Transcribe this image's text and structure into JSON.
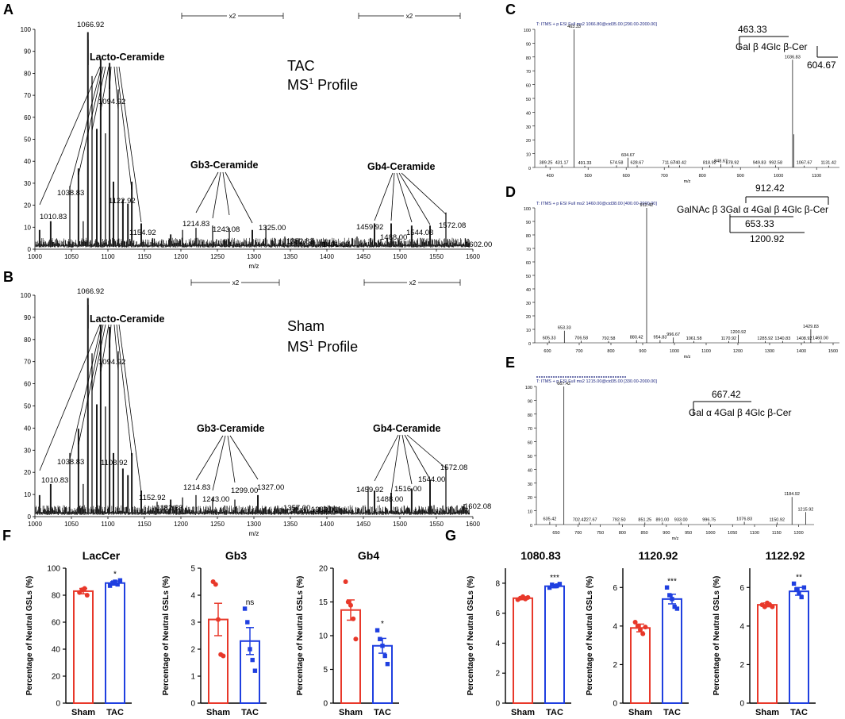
{
  "panels": {
    "A": {
      "letter": "A",
      "title1": "TAC",
      "title2_main": "MS",
      "title2_sup": "1",
      "title2_tail": " Profile",
      "x2_left": "x2",
      "x2_right": "x2",
      "xlabel": "m/z",
      "groups": {
        "lacto": "Lacto-Ceramide",
        "gb3": "Gb3-Ceramide",
        "gb4": "Gb4-Ceramide"
      },
      "peaks": {
        "p1066": "1066.92",
        "p1094": "1094.92",
        "p1038": "1038.83",
        "p1010": "1010.83",
        "p1122": "1122.92",
        "p1154": "1154.92",
        "p1214": "1214.83",
        "p1243": "1243.08",
        "p1325": "1325.00",
        "p1352": "1352.83",
        "p1401": "1401.83",
        "p1459": "1459.92",
        "p1488": "1488.00",
        "p1544": "1544.08",
        "p1572": "1572.08",
        "p1602": "1602.00"
      }
    },
    "B": {
      "letter": "B",
      "title1": "Sham",
      "title2_main": "MS",
      "title2_sup": "1",
      "title2_tail": " Profile",
      "x2_left": "x2",
      "x2_right": "x2",
      "xlabel": "m/z",
      "groups": {
        "lacto": "Lacto-Ceramide",
        "gb3": "Gb3-Ceramide",
        "gb4": "Gb4-Ceramide"
      },
      "peaks": {
        "p1066": "1066.92",
        "p1094": "1094.92",
        "p1038": "1038.83",
        "p1010": "1010.83",
        "p1108": "1108.92",
        "p1152": "1152.92",
        "p1182": "1182.83",
        "p1214": "1214.83",
        "p1243": "1243.00",
        "p1299": "1299.00",
        "p1327": "1327.00",
        "p1357": "1357.00",
        "p1389": "1389.08",
        "p1459": "1459.92",
        "p1488": "1488.00",
        "p1516": "1516.00",
        "p1544": "1544.00",
        "p1572": "1572.08",
        "p1602": "1602.08"
      }
    },
    "C": {
      "letter": "C",
      "header": "T: ITMS + p ESI Full ms2 1066.80@cid35.00 [290.00-2000.00]",
      "xlabel": "m/z",
      "frag_top": "463.33",
      "frag_bottom": "604.67",
      "struct": "Gal β 4Glc β-Cer",
      "peaks": [
        "389.25",
        "431.17",
        "463.33",
        "491.33",
        "574.58",
        "604.67",
        "628.67",
        "711.67",
        "740.42",
        "818.92",
        "848.67",
        "878.92",
        "949.83",
        "992.58",
        "1036.83",
        "1067.67",
        "1131.42"
      ]
    },
    "D": {
      "letter": "D",
      "header": "T: ITMS + p ESI Full ms2 1460.00@cid38.00 [400.00-2000.00]",
      "xlabel": "m/z",
      "frag_top": "912.42",
      "frag_mid": "653.33",
      "frag_bottom": "1200.92",
      "struct": "GalNAc β 3Gal α 4Gal β 4Glc β-Cer",
      "peaks": [
        "605.33",
        "653.33",
        "706.58",
        "792.58",
        "880.42",
        "912.42",
        "954.83",
        "996.67",
        "1061.58",
        "1170.92",
        "1200.92",
        "1285.92",
        "1340.83",
        "1408.92",
        "1429.83",
        "1460.00"
      ]
    },
    "E": {
      "letter": "E",
      "header": "T: ITMS + p ESI Full ms2 1215.00@cid35.00 [330.00-2000.00]",
      "xlabel": "m/z",
      "frag_top": "667.42",
      "struct": "Gal α 4Gal β 4Glc β-Cer",
      "peaks": [
        "635.42",
        "667.42",
        "702.42",
        "727.67",
        "792.50",
        "851.25",
        "891.00",
        "933.00",
        "996.75",
        "1076.83",
        "1150.92",
        "1184.92",
        "1215.92"
      ]
    }
  },
  "panelF_letter": "F",
  "panelG_letter": "G",
  "colors": {
    "sham": "#e8382a",
    "tac": "#1f3fe0",
    "trace": "#000000",
    "dots": "#2e7d32"
  },
  "chart_data": [
    {
      "type": "bar",
      "panel": "F",
      "title": "LacCer",
      "categories": [
        "Sham",
        "TAC"
      ],
      "values": [
        83,
        89
      ],
      "errors": [
        2,
        1.5
      ],
      "ylim": [
        0,
        100
      ],
      "yticks": [
        0,
        20,
        40,
        60,
        80,
        100
      ],
      "ylabel": "Percentage of Neutral GSLs (%)",
      "significance": "*",
      "points": [
        [
          82,
          84,
          85,
          80
        ],
        [
          87,
          89,
          90,
          88,
          91
        ]
      ]
    },
    {
      "type": "bar",
      "panel": "F",
      "title": "Gb3",
      "categories": [
        "Sham",
        "TAC"
      ],
      "values": [
        3.1,
        2.3
      ],
      "errors": [
        0.6,
        0.5
      ],
      "ylim": [
        0,
        5
      ],
      "yticks": [
        0,
        1,
        2,
        3,
        4,
        5
      ],
      "ylabel": "Percentage of Neutral GSLs (%)",
      "significance": "ns",
      "points": [
        [
          4.5,
          4.4,
          3.1,
          1.8,
          1.75
        ],
        [
          3.5,
          3.0,
          2.0,
          1.6,
          1.2
        ]
      ]
    },
    {
      "type": "bar",
      "panel": "F",
      "title": "Gb4",
      "categories": [
        "Sham",
        "TAC"
      ],
      "values": [
        13.8,
        8.5
      ],
      "errors": [
        1.5,
        1.1
      ],
      "ylim": [
        0,
        20
      ],
      "yticks": [
        0,
        5,
        10,
        15,
        20
      ],
      "ylabel": "Percentage of Neutral GSLs (%)",
      "significance": "*",
      "points": [
        [
          18,
          15,
          14.5,
          12.5,
          9.5
        ],
        [
          10.8,
          9.5,
          8.5,
          7.0,
          5.8
        ]
      ]
    },
    {
      "type": "bar",
      "panel": "G",
      "title": "1080.83",
      "categories": [
        "Sham",
        "TAC"
      ],
      "values": [
        7.0,
        7.8
      ],
      "errors": [
        0.1,
        0.1
      ],
      "ylim": [
        0,
        9
      ],
      "yticks": [
        0,
        2,
        4,
        6,
        8
      ],
      "ylabel": "Percentage of Neutral GSLs (%)",
      "significance": "***",
      "points": [
        [
          6.9,
          7.0,
          7.1,
          6.95,
          7.05
        ],
        [
          7.7,
          7.9,
          7.8,
          7.85,
          7.95
        ]
      ]
    },
    {
      "type": "bar",
      "panel": "G",
      "title": "1120.92",
      "categories": [
        "Sham",
        "TAC"
      ],
      "values": [
        3.9,
        5.4
      ],
      "errors": [
        0.2,
        0.25
      ],
      "ylim": [
        0,
        7
      ],
      "yticks": [
        0,
        2,
        4,
        6
      ],
      "ylabel": "Percentage of Neutral GSLs (%)",
      "significance": "***",
      "points": [
        [
          4.2,
          4.0,
          3.8,
          3.6,
          3.95
        ],
        [
          6.0,
          5.6,
          5.4,
          5.0,
          4.9
        ]
      ]
    },
    {
      "type": "bar",
      "panel": "G",
      "title": "1122.92",
      "categories": [
        "Sham",
        "TAC"
      ],
      "values": [
        5.1,
        5.8
      ],
      "errors": [
        0.1,
        0.2
      ],
      "ylim": [
        0,
        7
      ],
      "yticks": [
        0,
        2,
        4,
        6
      ],
      "ylabel": "Percentage of Neutral GSLs (%)",
      "significance": "**",
      "points": [
        [
          5.1,
          5.0,
          5.2,
          5.1,
          5.0
        ],
        [
          6.2,
          5.9,
          5.7,
          5.5,
          6.0
        ]
      ]
    }
  ]
}
